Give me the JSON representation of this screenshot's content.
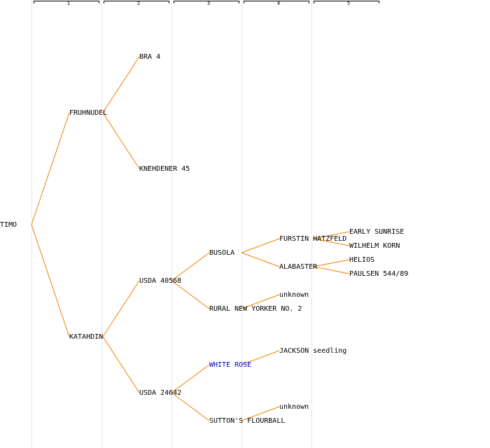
{
  "generations": [
    "1",
    "2",
    "3",
    "4",
    "5"
  ],
  "colors": {
    "edge": "#f08000",
    "column_rule": "#e8e8e8",
    "bracket": "#000000",
    "text": "#000000",
    "link": "#0000cc"
  },
  "nodes": {
    "timo": "TIMO",
    "fruhnudel": "FRUHNUDEL",
    "katahdin": "KATAHDIN",
    "bra4": "BRA 4",
    "knehdener45": "KNEHDENER 45",
    "usda40568": "USDA 40568",
    "usda24642": "USDA 24642",
    "busola": "BUSOLA",
    "rural": "RURAL NEW YORKER NO. 2",
    "whiterose": "WHITE ROSE",
    "suttons": "SUTTON'S FLOURBALL",
    "furstin": "FURSTIN HATZFELD",
    "alabaster": "ALABASTER",
    "unknown1": "unknown",
    "jackson": "JACKSON seedling",
    "unknown2": "unknown",
    "earlysunrise": "EARLY SUNRISE",
    "wilhelmkorn": "WILHELM KORN",
    "helios": "HELIOS",
    "paulsen": "PAULSEN 544/89"
  }
}
